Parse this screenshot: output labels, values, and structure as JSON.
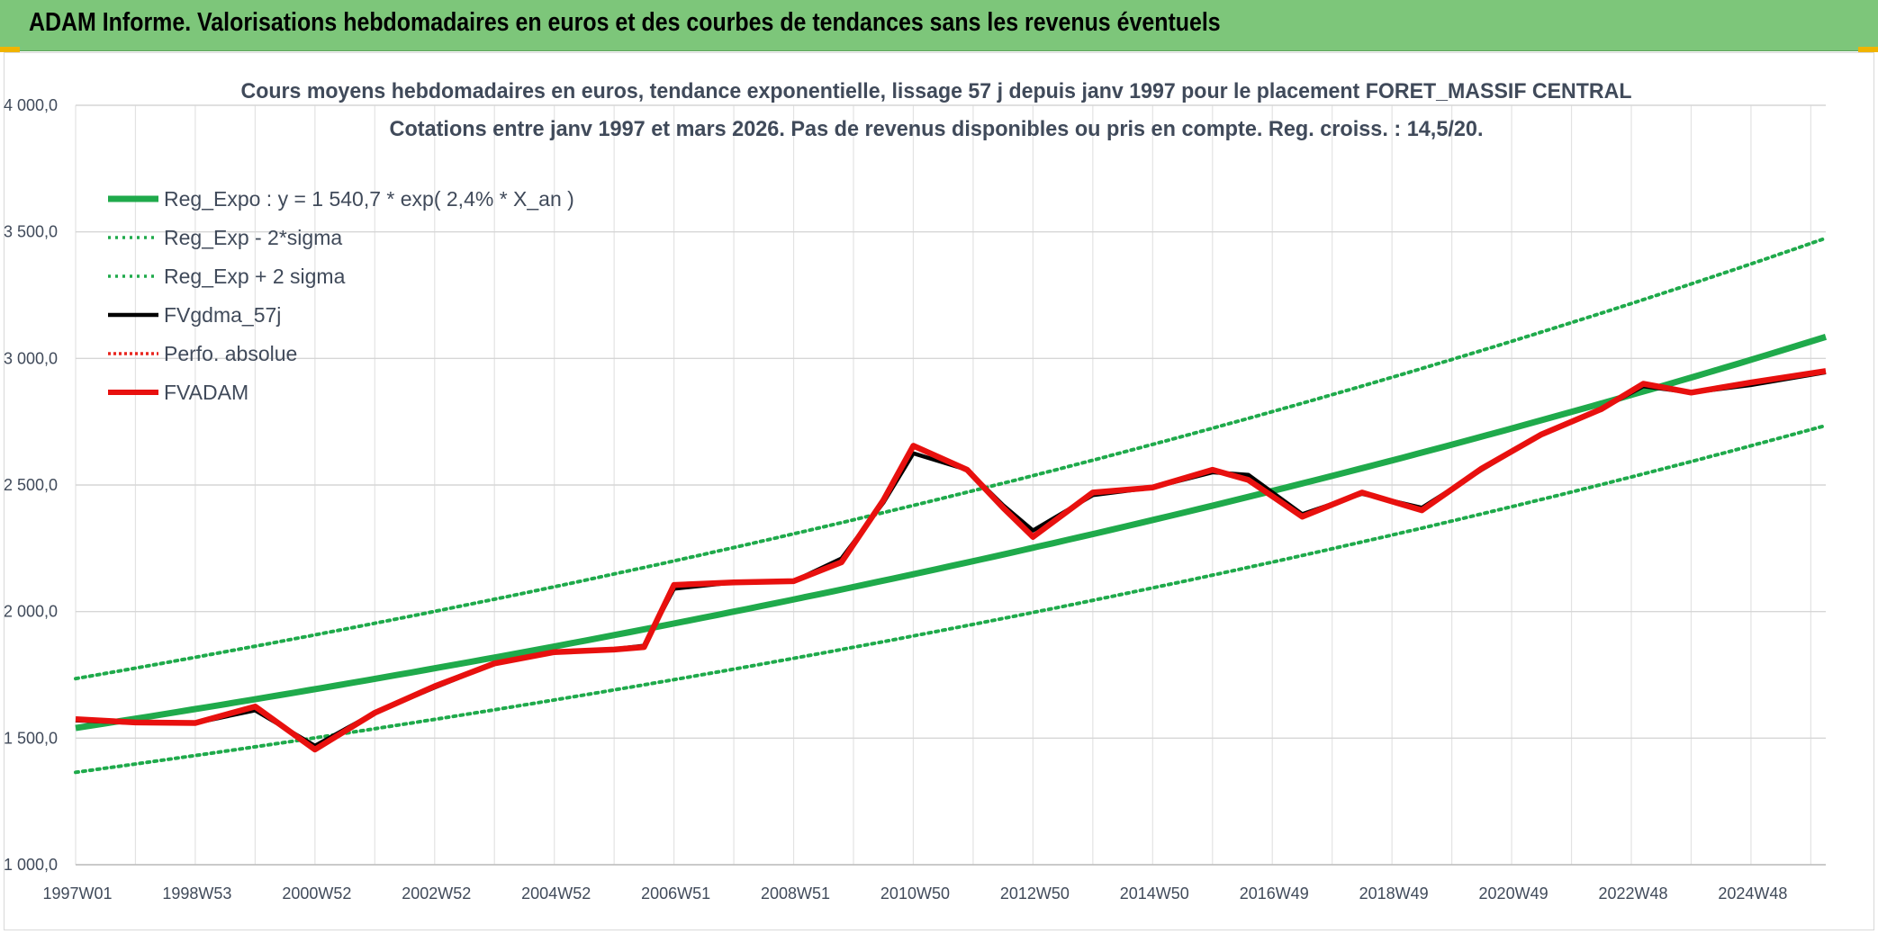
{
  "header": {
    "title": "ADAM Informe. Valorisations hebdomadaires en euros et des courbes de tendances sans les revenus éventuels"
  },
  "colors": {
    "banner": "#7dc67a",
    "trend": "#1faa4b",
    "band": "#1faa4b",
    "smoothed": "#000000",
    "absolute": "#e8251f",
    "fvadam": "#e8100e"
  },
  "chart_data": {
    "type": "line",
    "title": "Cours moyens hebdomadaires en euros, tendance exponentielle, lissage 57 j depuis janv 1997 pour le placement FORET_MASSIF CENTRAL",
    "subtitle": "Cotations entre janv 1997 et mars 2026. Pas de revenus disponibles ou pris en compte. Reg. croiss. : 14,5/20.",
    "xlabel": "",
    "ylabel": "",
    "ylim": [
      1000,
      4000
    ],
    "xlim": [
      1997.0,
      2026.25
    ],
    "y_ticks": [
      1000,
      1500,
      2000,
      2500,
      3000,
      3500,
      4000
    ],
    "y_tick_labels": [
      "1 000,0",
      "1 500,0",
      "2 000,0",
      "2 500,0",
      "3 000,0",
      "3 500,0",
      "4 000,0"
    ],
    "x_tick_labels": [
      "1997W01",
      "1998W53",
      "2000W52",
      "2002W52",
      "2004W52",
      "2006W51",
      "2008W51",
      "2010W50",
      "2012W50",
      "2014W50",
      "2016W49",
      "2018W49",
      "2020W49",
      "2022W48",
      "2024W48"
    ],
    "x_tick_positions": [
      1997.0,
      1999.0,
      2001.0,
      2003.0,
      2005.0,
      2007.0,
      2009.0,
      2011.0,
      2013.0,
      2015.0,
      2017.0,
      2019.0,
      2021.0,
      2023.0,
      2025.0
    ],
    "grid": true,
    "legend_position": "top-left",
    "trend_model": {
      "a": 1540.7,
      "rate": 0.024
    },
    "series": [
      {
        "name": "Reg_Expo : y = 1 540,7 * exp( 2,4% *  X_an )",
        "style": "thick",
        "x": [
          1997.0,
          2000.0,
          2003.0,
          2006.0,
          2009.0,
          2012.0,
          2015.0,
          2018.0,
          2021.0,
          2024.0,
          2026.25
        ],
        "values": [
          1540,
          1657,
          1783,
          1920,
          2065,
          2225,
          2395,
          2577,
          2775,
          2985,
          3085
        ]
      },
      {
        "name": "Reg_Exp - 2*sigma",
        "style": "dotted",
        "x": [
          1997.0,
          2000.0,
          2003.0,
          2006.0,
          2009.0,
          2012.0,
          2015.0,
          2018.0,
          2021.0,
          2024.0,
          2026.25
        ],
        "values": [
          1365,
          1470,
          1585,
          1705,
          1838,
          1982,
          2137,
          2305,
          2488,
          2630,
          2735
        ]
      },
      {
        "name": "Reg_Exp + 2 sigma",
        "style": "dotted",
        "x": [
          1997.0,
          2000.0,
          2003.0,
          2006.0,
          2009.0,
          2012.0,
          2015.0,
          2018.0,
          2021.0,
          2024.0,
          2026.25
        ],
        "values": [
          1735,
          1870,
          2015,
          2170,
          2340,
          2525,
          2720,
          2935,
          3165,
          3360,
          3475
        ]
      },
      {
        "name": "FVgdma_57j",
        "style": "black",
        "x": [
          1997.0,
          1998.0,
          1999.0,
          2000.0,
          2001.0,
          2002.0,
          2003.0,
          2004.0,
          2005.0,
          2006.0,
          2006.5,
          2007.0,
          2008.0,
          2009.0,
          2009.8,
          2010.5,
          2011.0,
          2011.9,
          2012.5,
          2013.0,
          2014.0,
          2015.0,
          2016.0,
          2016.6,
          2017.5,
          2018.5,
          2019.5,
          2020.5,
          2021.5,
          2022.5,
          2023.2,
          2024.0,
          2025.0,
          2026.25
        ],
        "values": [
          1570,
          1560,
          1560,
          1610,
          1470,
          1600,
          1700,
          1795,
          1840,
          1852,
          1865,
          2090,
          2115,
          2120,
          2210,
          2430,
          2625,
          2560,
          2420,
          2320,
          2460,
          2490,
          2550,
          2540,
          2385,
          2465,
          2410,
          2560,
          2700,
          2800,
          2890,
          2865,
          2895,
          2945
        ]
      },
      {
        "name": "Perfo. absolue",
        "style": "dotted-red",
        "x": [],
        "values": []
      },
      {
        "name": "FVADAM",
        "style": "red",
        "x": [
          1997.0,
          1998.0,
          1999.0,
          2000.0,
          2001.0,
          2002.0,
          2003.0,
          2004.0,
          2005.0,
          2006.0,
          2006.5,
          2007.0,
          2008.0,
          2009.0,
          2009.8,
          2010.5,
          2011.0,
          2011.9,
          2012.5,
          2013.0,
          2014.0,
          2015.0,
          2016.0,
          2016.6,
          2017.5,
          2018.5,
          2019.5,
          2020.5,
          2021.5,
          2022.5,
          2023.2,
          2024.0,
          2025.0,
          2026.25
        ],
        "values": [
          1575,
          1562,
          1560,
          1625,
          1455,
          1600,
          1705,
          1795,
          1840,
          1850,
          1860,
          2105,
          2115,
          2120,
          2195,
          2440,
          2655,
          2560,
          2410,
          2295,
          2470,
          2490,
          2560,
          2520,
          2375,
          2470,
          2400,
          2565,
          2700,
          2800,
          2900,
          2865,
          2905,
          2950
        ]
      }
    ]
  }
}
